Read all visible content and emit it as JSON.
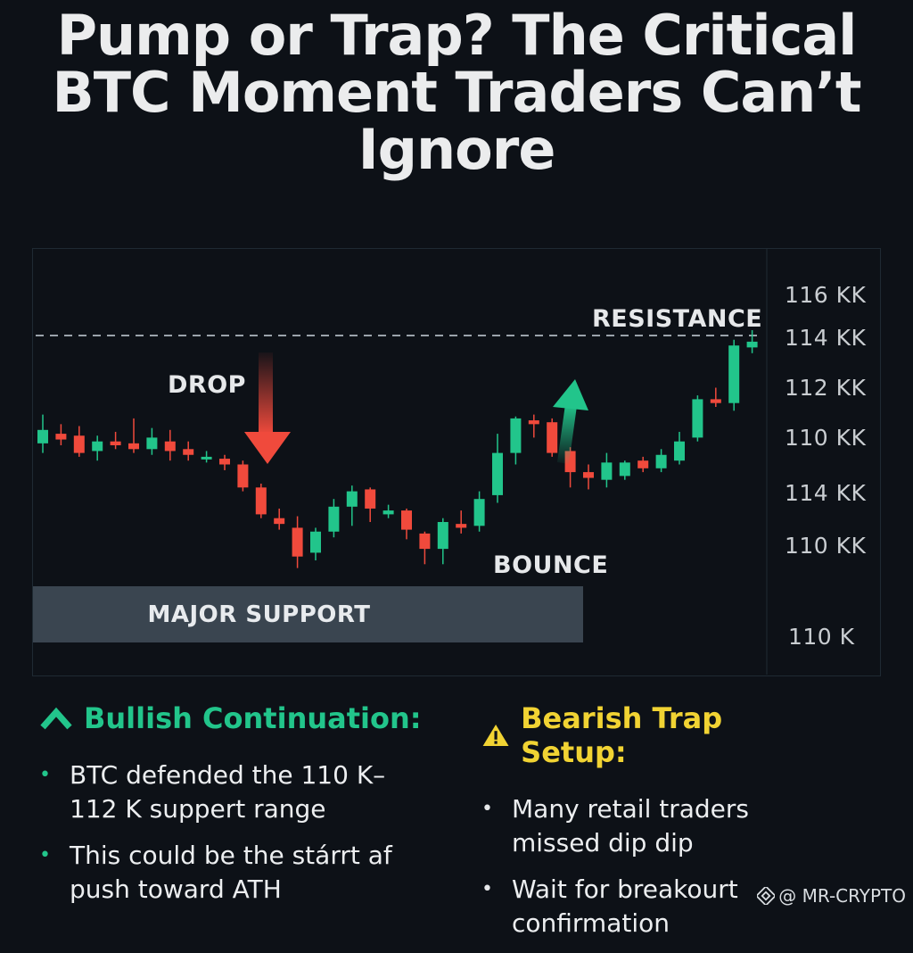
{
  "title": "Pump or Trap? The Critical BTC Moment Traders Can’t Ignore",
  "colors": {
    "background": "#0d1117",
    "bullish": "#22c58b",
    "bearish": "#f04a3c",
    "warning": "#f1d333",
    "support_band": "#3a4550"
  },
  "chart_data": {
    "type": "candlestick",
    "price_axis_labels": [
      "116 KK",
      "114 KK",
      "112 KK",
      "110 KK",
      "114 KK",
      "110 KK",
      "110 K"
    ],
    "annotations": {
      "resistance": "RESISTANCE",
      "drop": "DROP",
      "bounce": "BOUNCE",
      "support": "MAJOR SUPPORT"
    },
    "candles": [
      {
        "o": 110.05,
        "c": 110.4,
        "h": 110.8,
        "l": 109.8
      },
      {
        "o": 110.3,
        "c": 110.15,
        "h": 110.55,
        "l": 110.0
      },
      {
        "o": 110.25,
        "c": 109.8,
        "h": 110.5,
        "l": 109.7
      },
      {
        "o": 109.85,
        "c": 110.1,
        "h": 110.25,
        "l": 109.6
      },
      {
        "o": 110.1,
        "c": 110.0,
        "h": 110.35,
        "l": 109.9
      },
      {
        "o": 110.05,
        "c": 109.9,
        "h": 110.7,
        "l": 109.8
      },
      {
        "o": 109.9,
        "c": 110.2,
        "h": 110.45,
        "l": 109.75
      },
      {
        "o": 110.1,
        "c": 109.85,
        "h": 110.4,
        "l": 109.6
      },
      {
        "o": 109.9,
        "c": 109.75,
        "h": 110.1,
        "l": 109.6
      },
      {
        "o": 109.7,
        "c": 109.7,
        "h": 109.85,
        "l": 109.55
      },
      {
        "o": 109.65,
        "c": 109.5,
        "h": 109.75,
        "l": 109.35
      },
      {
        "o": 109.5,
        "c": 108.9,
        "h": 109.6,
        "l": 108.8
      },
      {
        "o": 108.9,
        "c": 108.2,
        "h": 109.0,
        "l": 108.1
      },
      {
        "o": 108.1,
        "c": 107.95,
        "h": 108.35,
        "l": 107.8
      },
      {
        "o": 107.85,
        "c": 107.1,
        "h": 108.15,
        "l": 106.8
      },
      {
        "o": 107.2,
        "c": 107.75,
        "h": 107.85,
        "l": 107.0
      },
      {
        "o": 107.75,
        "c": 108.4,
        "h": 108.6,
        "l": 107.6
      },
      {
        "o": 108.4,
        "c": 108.8,
        "h": 108.95,
        "l": 107.9
      },
      {
        "o": 108.85,
        "c": 108.35,
        "h": 108.9,
        "l": 108.0
      },
      {
        "o": 108.2,
        "c": 108.3,
        "h": 108.45,
        "l": 108.1
      },
      {
        "o": 108.3,
        "c": 107.8,
        "h": 108.35,
        "l": 107.55
      },
      {
        "o": 107.7,
        "c": 107.3,
        "h": 107.75,
        "l": 106.9
      },
      {
        "o": 107.3,
        "c": 108.0,
        "h": 108.1,
        "l": 106.9
      },
      {
        "o": 107.95,
        "c": 107.85,
        "h": 108.3,
        "l": 107.7
      },
      {
        "o": 107.9,
        "c": 108.6,
        "h": 108.8,
        "l": 107.75
      },
      {
        "o": 108.7,
        "c": 109.8,
        "h": 110.3,
        "l": 108.5
      },
      {
        "o": 109.8,
        "c": 110.7,
        "h": 110.75,
        "l": 109.5
      },
      {
        "o": 110.65,
        "c": 110.55,
        "h": 110.8,
        "l": 110.2
      },
      {
        "o": 110.6,
        "c": 109.8,
        "h": 110.7,
        "l": 109.7
      },
      {
        "o": 109.85,
        "c": 109.3,
        "h": 109.95,
        "l": 108.9
      },
      {
        "o": 109.3,
        "c": 109.15,
        "h": 109.5,
        "l": 108.85
      },
      {
        "o": 109.1,
        "c": 109.55,
        "h": 109.8,
        "l": 108.9
      },
      {
        "o": 109.2,
        "c": 109.55,
        "h": 109.6,
        "l": 109.1
      },
      {
        "o": 109.6,
        "c": 109.4,
        "h": 109.7,
        "l": 109.3
      },
      {
        "o": 109.4,
        "c": 109.75,
        "h": 109.9,
        "l": 109.3
      },
      {
        "o": 109.6,
        "c": 110.1,
        "h": 110.35,
        "l": 109.5
      },
      {
        "o": 110.2,
        "c": 111.2,
        "h": 111.3,
        "l": 110.1
      },
      {
        "o": 111.2,
        "c": 111.1,
        "h": 111.5,
        "l": 111.0
      },
      {
        "o": 111.1,
        "c": 112.6,
        "h": 112.75,
        "l": 110.9
      },
      {
        "o": 112.55,
        "c": 112.7,
        "h": 113.0,
        "l": 112.4
      }
    ]
  },
  "bullish": {
    "heading": "Bullish Continuation:",
    "bullets": [
      "BTC defended the 110 K– 112 K suppert range",
      "This could be the stárrt af push toward ATH"
    ]
  },
  "bearish": {
    "heading": "Bearish Trap Setup:",
    "bullets": [
      "Many retail traders missed dip dip",
      "Wait for breakourt confirmation"
    ]
  },
  "watermark": "@ MR-CRYPTO"
}
